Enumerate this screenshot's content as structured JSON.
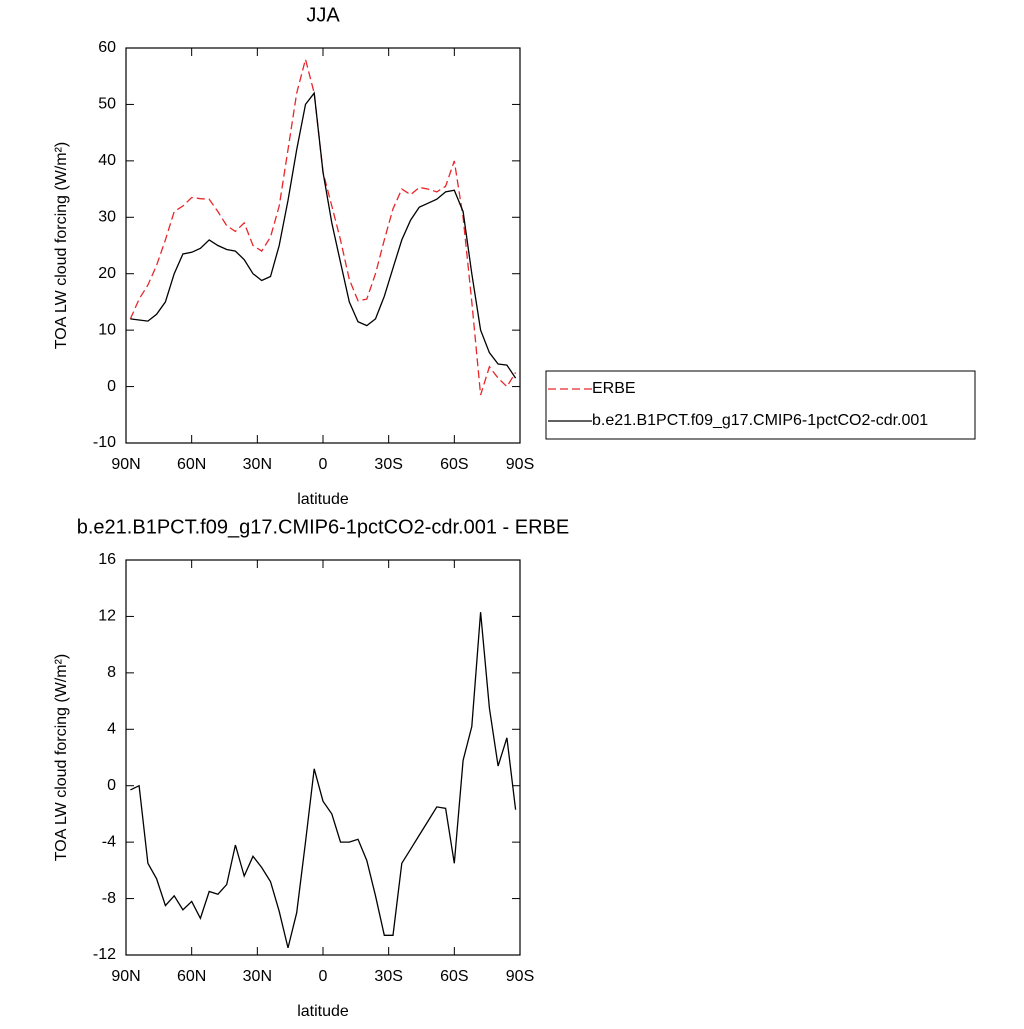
{
  "chart_data": [
    {
      "type": "line",
      "title": "JJA",
      "xlabel": "latitude",
      "ylabel": "TOA LW cloud forcing (W/m²)",
      "x": [
        88,
        84,
        80,
        76,
        72,
        68,
        64,
        60,
        56,
        52,
        48,
        44,
        40,
        36,
        32,
        28,
        24,
        20,
        16,
        12,
        8,
        4,
        0,
        -4,
        -8,
        -12,
        -16,
        -20,
        -24,
        -28,
        -32,
        -36,
        -40,
        -44,
        -48,
        -52,
        -56,
        -60,
        -64,
        -68,
        -72,
        -76,
        -80,
        -84,
        -88
      ],
      "series": [
        {
          "name": "ERBE",
          "color": "#e8262a",
          "linestyle": "dashed",
          "values": [
            12,
            15.5,
            18,
            21.5,
            26,
            31,
            32,
            33.5,
            33.3,
            33.2,
            31,
            28.5,
            27.5,
            29,
            25,
            24,
            26.5,
            32,
            42,
            52,
            58,
            52,
            38,
            32,
            26,
            19,
            15.2,
            15.5,
            20,
            26,
            31.5,
            35,
            34,
            35.3,
            35,
            34.5,
            35.5,
            40,
            30,
            15,
            -1.5,
            3.5,
            1.5,
            0,
            2.5
          ]
        },
        {
          "name": "b.e21.B1PCT.f09_g17.CMIP6-1pctCO2-cdr.001",
          "color": "#000000",
          "linestyle": "solid",
          "values": [
            12,
            11.8,
            11.6,
            12.8,
            15,
            20,
            23.5,
            23.8,
            24.5,
            26,
            25,
            24.3,
            24,
            22.5,
            20,
            18.8,
            19.5,
            25,
            33,
            42,
            50,
            52,
            38,
            29,
            22,
            15,
            11.5,
            10.8,
            12,
            16,
            21,
            26,
            29.5,
            31.8,
            32.5,
            33.2,
            34.5,
            34.8,
            31,
            20,
            10,
            6,
            4,
            3.8,
            1.5
          ]
        }
      ],
      "xlim": [
        90,
        -90
      ],
      "xticks": [
        {
          "value": 90,
          "label": "90N"
        },
        {
          "value": 60,
          "label": "60N"
        },
        {
          "value": 30,
          "label": "30N"
        },
        0,
        {
          "value": -30,
          "label": "30S"
        },
        {
          "value": -60,
          "label": "60S"
        },
        {
          "value": -90,
          "label": "90S"
        }
      ],
      "ylim": [
        -10,
        60
      ],
      "yticks": [
        60,
        50,
        40,
        30,
        20,
        10,
        0,
        -10
      ],
      "legend": "right"
    },
    {
      "type": "line",
      "title": "b.e21.B1PCT.f09_g17.CMIP6-1pctCO2-cdr.001 - ERBE",
      "xlabel": "latitude",
      "ylabel": "TOA LW cloud forcing (W/m²)",
      "x": [
        88,
        84,
        80,
        76,
        72,
        68,
        64,
        60,
        56,
        52,
        48,
        44,
        40,
        36,
        32,
        28,
        24,
        20,
        16,
        12,
        8,
        4,
        0,
        -4,
        -8,
        -12,
        -16,
        -20,
        -24,
        -28,
        -32,
        -36,
        -40,
        -44,
        -48,
        -52,
        -56,
        -60,
        -64,
        -68,
        -72,
        -76,
        -80,
        -84,
        -88
      ],
      "values": [
        -0.3,
        0,
        -5.5,
        -6.6,
        -8.5,
        -7.8,
        -8.8,
        -8.2,
        -9.4,
        -7.5,
        -7.7,
        -7,
        -4.2,
        -6.4,
        -5,
        -5.8,
        -6.8,
        -8.9,
        -11.5,
        -9,
        -4,
        1.2,
        -1.1,
        -2,
        -4,
        -4,
        -3.8,
        -5.3,
        -7.8,
        -10.6,
        -10.6,
        -5.5,
        -4.5,
        -3.5,
        -2.5,
        -1.5,
        -1.6,
        -5.5,
        1.8,
        4.2,
        12.3,
        5.5,
        1.4,
        3.4,
        -1.7
      ],
      "color": "#000000",
      "xlim": [
        90,
        -90
      ],
      "xticks": [
        {
          "value": 90,
          "label": "90N"
        },
        {
          "value": 60,
          "label": "60N"
        },
        {
          "value": 30,
          "label": "30N"
        },
        0,
        {
          "value": -30,
          "label": "30S"
        },
        {
          "value": -60,
          "label": "60S"
        },
        {
          "value": -90,
          "label": "90S"
        }
      ],
      "ylim": [
        -12,
        16
      ],
      "yticks": [
        16,
        12,
        8,
        4,
        0,
        -4,
        -8,
        -12
      ]
    }
  ]
}
